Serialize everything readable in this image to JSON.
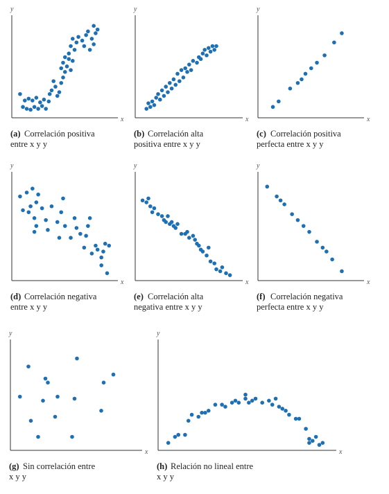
{
  "chart_data": [
    {
      "type": "scatter",
      "x_label": "x",
      "y_label": "y",
      "caption_label": "(a)",
      "caption_lines": [
        "Correlación positiva",
        "entre x y y"
      ],
      "color": "#1f70b3",
      "xlim": [
        0,
        100
      ],
      "ylim": [
        0,
        100
      ],
      "x": [
        5,
        10,
        14,
        18,
        22,
        26,
        30,
        8,
        12,
        16,
        20,
        24,
        28,
        32,
        35,
        36,
        38,
        42,
        44,
        46,
        40,
        48,
        50,
        52,
        48,
        54,
        50,
        56,
        58,
        60,
        52,
        56,
        62,
        58,
        64,
        60,
        66,
        70,
        72,
        74,
        76,
        80,
        82,
        84,
        78,
        86,
        82
      ],
      "y": [
        22,
        15,
        17,
        15,
        18,
        13,
        16,
        8,
        6,
        5,
        8,
        6,
        9,
        6,
        14,
        22,
        26,
        30,
        20,
        24,
        36,
        34,
        40,
        46,
        50,
        52,
        56,
        60,
        48,
        58,
        62,
        66,
        70,
        74,
        78,
        82,
        84,
        80,
        74,
        86,
        90,
        82,
        76,
        88,
        70,
        92,
        96
      ]
    },
    {
      "type": "scatter",
      "x_label": "x",
      "y_label": "y",
      "caption_label": "(b)",
      "caption_lines": [
        "Correlación alta",
        "positiva entre x y y"
      ],
      "color": "#1f70b3",
      "xlim": [
        0,
        100
      ],
      "ylim": [
        0,
        100
      ],
      "x": [
        8,
        10,
        12,
        14,
        16,
        18,
        20,
        22,
        24,
        26,
        28,
        30,
        32,
        34,
        36,
        38,
        40,
        42,
        44,
        46,
        48,
        50,
        52,
        54,
        56,
        60,
        62,
        64,
        66,
        68,
        70,
        72,
        74,
        76,
        78,
        80
      ],
      "y": [
        6,
        12,
        8,
        14,
        10,
        18,
        22,
        16,
        26,
        20,
        30,
        24,
        34,
        28,
        38,
        32,
        44,
        36,
        48,
        40,
        50,
        46,
        54,
        48,
        58,
        56,
        62,
        60,
        66,
        70,
        64,
        72,
        68,
        74,
        70,
        74
      ]
    },
    {
      "type": "scatter",
      "x_label": "x",
      "y_label": "y",
      "caption_label": "(c)",
      "caption_lines": [
        "Correlación positiva",
        "perfecta entre x y y"
      ],
      "color": "#1f70b3",
      "xlim": [
        0,
        100
      ],
      "ylim": [
        0,
        100
      ],
      "x": [
        12,
        18,
        30,
        38,
        42,
        46,
        52,
        58,
        66,
        76,
        84
      ],
      "y": [
        8,
        14,
        28,
        34,
        38,
        44,
        50,
        56,
        64,
        78,
        88
      ]
    },
    {
      "type": "scatter",
      "x_label": "x",
      "y_label": "y",
      "caption_label": "(d)",
      "caption_lines": [
        "Correlación negativa",
        "entre x y y"
      ],
      "color": "#1f70b3",
      "xlim": [
        0,
        100
      ],
      "ylim": [
        0,
        100
      ],
      "x": [
        5,
        12,
        18,
        24,
        8,
        14,
        16,
        20,
        22,
        28,
        20,
        22,
        32,
        34,
        38,
        44,
        46,
        48,
        50,
        52,
        58,
        62,
        64,
        68,
        72,
        74,
        76,
        78,
        80,
        84,
        86,
        90,
        90,
        92,
        94,
        96,
        98
      ],
      "y": [
        82,
        86,
        90,
        84,
        68,
        66,
        72,
        60,
        76,
        70,
        46,
        52,
        58,
        48,
        72,
        56,
        40,
        66,
        80,
        52,
        40,
        60,
        50,
        44,
        30,
        42,
        52,
        60,
        24,
        32,
        28,
        20,
        12,
        26,
        34,
        4,
        32
      ]
    },
    {
      "type": "scatter",
      "x_label": "x",
      "y_label": "y",
      "caption_label": "(e)",
      "caption_lines": [
        "Correlación alta",
        "negativa entre x y y"
      ],
      "color": "#1f70b3",
      "xlim": [
        0,
        100
      ],
      "ylim": [
        0,
        100
      ],
      "x": [
        4,
        8,
        10,
        12,
        14,
        16,
        20,
        24,
        26,
        28,
        30,
        32,
        34,
        36,
        38,
        40,
        44,
        48,
        50,
        52,
        56,
        58,
        60,
        62,
        64,
        66,
        70,
        72,
        74,
        78,
        80,
        84,
        86,
        90,
        94
      ],
      "y": [
        78,
        76,
        80,
        72,
        66,
        70,
        64,
        62,
        58,
        56,
        62,
        54,
        56,
        52,
        50,
        54,
        44,
        44,
        46,
        40,
        42,
        38,
        34,
        32,
        28,
        26,
        22,
        30,
        16,
        14,
        8,
        6,
        10,
        4,
        2
      ]
    },
    {
      "type": "scatter",
      "x_label": "x",
      "y_label": "y",
      "caption_label": "(f)",
      "caption_lines": [
        "Correlación negativa",
        "perfecta entre x y y"
      ],
      "color": "#1f70b3",
      "xlim": [
        0,
        100
      ],
      "ylim": [
        0,
        100
      ],
      "x": [
        6,
        16,
        20,
        24,
        32,
        38,
        44,
        50,
        58,
        64,
        68,
        74,
        84
      ],
      "y": [
        92,
        82,
        78,
        74,
        64,
        58,
        52,
        46,
        36,
        30,
        26,
        18,
        6
      ]
    },
    {
      "type": "scatter",
      "x_label": "x",
      "y_label": "y",
      "caption_label": "(g)",
      "caption_lines": [
        "Sin correlación entre",
        "x y y"
      ],
      "color": "#1f70b3",
      "xlim": [
        0,
        100
      ],
      "ylim": [
        0,
        100
      ],
      "x": [
        12,
        5,
        26,
        28,
        36,
        24,
        14,
        34,
        20,
        52,
        50,
        48,
        72,
        74,
        82
      ],
      "y": [
        80,
        50,
        68,
        64,
        50,
        46,
        26,
        30,
        10,
        88,
        48,
        10,
        36,
        64,
        72
      ]
    },
    {
      "type": "scatter",
      "x_label": "x",
      "y_label": "y",
      "caption_label": "(h)",
      "caption_lines": [
        "Relación no lineal entre",
        "x y y"
      ],
      "color": "#1f70b3",
      "xlim": [
        0,
        100
      ],
      "ylim": [
        0,
        100
      ],
      "x": [
        4,
        8,
        10,
        14,
        16,
        18,
        22,
        24,
        26,
        28,
        32,
        36,
        38,
        42,
        44,
        46,
        50,
        50,
        52,
        54,
        56,
        60,
        64,
        66,
        68,
        70,
        72,
        74,
        76,
        80,
        82,
        86,
        88,
        88,
        90,
        92,
        94,
        96
      ],
      "y": [
        4,
        10,
        12,
        12,
        26,
        32,
        30,
        34,
        34,
        36,
        42,
        42,
        40,
        44,
        46,
        44,
        48,
        52,
        44,
        46,
        48,
        44,
        46,
        42,
        48,
        40,
        38,
        36,
        32,
        28,
        28,
        18,
        8,
        4,
        6,
        10,
        2,
        4
      ]
    }
  ]
}
